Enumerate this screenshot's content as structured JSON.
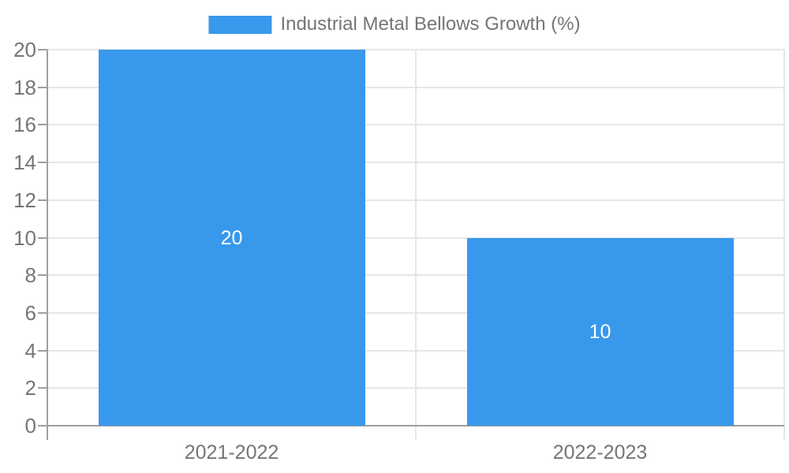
{
  "chart_data": {
    "type": "bar",
    "title": "Industrial Metal Bellows Growth (%)",
    "categories": [
      "2021-2022",
      "2022-2023"
    ],
    "values": [
      20,
      10
    ],
    "data_labels": [
      "20",
      "10"
    ],
    "xlabel": "",
    "ylabel": "",
    "ylim": [
      0,
      20
    ],
    "yticks": [
      0,
      2,
      4,
      6,
      8,
      10,
      12,
      14,
      16,
      18,
      20
    ],
    "grid": true,
    "legend_position": "top-center",
    "colors": {
      "bar": "#3898ec",
      "bar_label": "#ffffff",
      "axis_line": "#9e9e9e",
      "grid_line": "#e6e6e6",
      "tick_text": "#757575",
      "legend_text": "#757575",
      "background": "#ffffff"
    }
  }
}
